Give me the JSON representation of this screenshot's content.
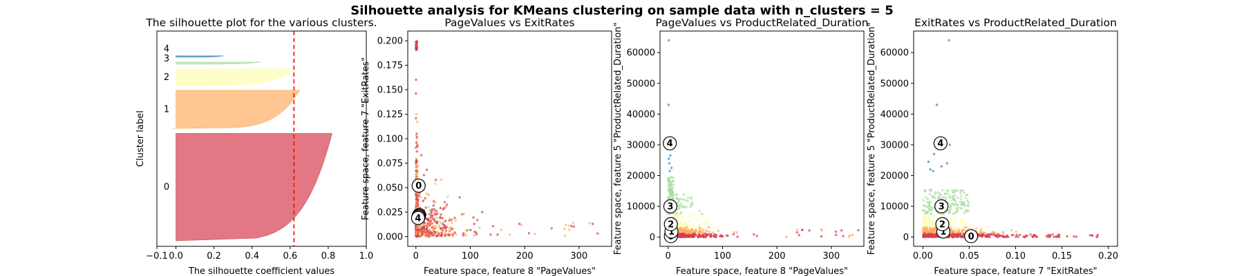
{
  "suptitle": "Silhouette analysis for KMeans clustering on sample data with n_clusters = 5",
  "colors": {
    "cluster_0": "#d53e4f",
    "cluster_1": "#fdae61",
    "cluster_2": "#fefeb0",
    "cluster_3": "#abdda4",
    "cluster_4": "#3288bd",
    "average_line": "#ff0000"
  },
  "chart_data": [
    {
      "type": "area",
      "title": "The silhouette plot for the various clusters.",
      "xlabel": "The silhouette coefficient values",
      "ylabel": "Cluster label",
      "xlim": [
        -0.1,
        1.0
      ],
      "xticks": [
        -0.1,
        0.0,
        0.2,
        0.4,
        0.6,
        0.8,
        1.0
      ],
      "xtick_labels": [
        "−0.1",
        "0.0",
        "0.2",
        "0.4",
        "0.6",
        "0.8",
        "1.0"
      ],
      "yticks": "none",
      "average_silhouette": 0.62,
      "clusters": [
        {
          "label": "0",
          "max": 0.82,
          "min": 0.0,
          "share": 0.59
        },
        {
          "label": "1",
          "max": 0.65,
          "min": -0.02,
          "share": 0.21
        },
        {
          "label": "2",
          "max": 0.62,
          "min": 0.0,
          "share": 0.09
        },
        {
          "label": "3",
          "max": 0.45,
          "min": 0.0,
          "share": 0.012
        },
        {
          "label": "4",
          "max": 0.25,
          "min": 0.0,
          "share": 0.004
        }
      ]
    },
    {
      "type": "scatter",
      "title": "PageValues vs ExitRates",
      "xlabel": "Feature space, feature 8 \"PageValues\"",
      "ylabel": "Feature space, feature 7 \"ExitRates\"",
      "xlim": [
        -15,
        360
      ],
      "ylim": [
        -0.01,
        0.21
      ],
      "xticks": [
        0,
        100,
        200,
        300
      ],
      "xtick_labels": [
        "0",
        "100",
        "200",
        "300"
      ],
      "yticks": [
        0.0,
        0.025,
        0.05,
        0.075,
        0.1,
        0.125,
        0.15,
        0.175,
        0.2
      ],
      "ytick_labels": [
        "0.000",
        "0.025",
        "0.050",
        "0.075",
        "0.100",
        "0.125",
        "0.150",
        "0.175",
        "0.200"
      ],
      "centers": [
        {
          "label": "0",
          "x": 5,
          "y": 0.052
        },
        {
          "label": "1",
          "x": 6,
          "y": 0.022
        },
        {
          "label": "2",
          "x": 5,
          "y": 0.021
        },
        {
          "label": "3",
          "x": 5,
          "y": 0.02
        },
        {
          "label": "4",
          "x": 4,
          "y": 0.019
        }
      ]
    },
    {
      "type": "scatter",
      "title": "PageValues vs ProductRelated_Duration",
      "xlabel": "Feature space, feature 8 \"PageValues\"",
      "ylabel": "Feature space, feature 5 \"ProductRelated_Duration\"",
      "xlim": [
        -15,
        360
      ],
      "ylim": [
        -3000,
        67000
      ],
      "xticks": [
        0,
        100,
        200,
        300
      ],
      "xtick_labels": [
        "0",
        "100",
        "200",
        "300"
      ],
      "yticks": [
        0,
        10000,
        20000,
        30000,
        40000,
        50000,
        60000
      ],
      "ytick_labels": [
        "0",
        "10000",
        "20000",
        "30000",
        "40000",
        "50000",
        "60000"
      ],
      "centers": [
        {
          "label": "0",
          "x": 5,
          "y": 300
        },
        {
          "label": "1",
          "x": 6,
          "y": 1800
        },
        {
          "label": "2",
          "x": 5,
          "y": 4200
        },
        {
          "label": "3",
          "x": 4,
          "y": 10000
        },
        {
          "label": "4",
          "x": 3,
          "y": 30500
        }
      ]
    },
    {
      "type": "scatter",
      "title": "ExitRates vs ProductRelated_Duration",
      "xlabel": "Feature space, feature 7 \"ExitRates\"",
      "ylabel": "Feature space, feature 5 \"ProductRelated_Duration\"",
      "xlim": [
        -0.01,
        0.21
      ],
      "ylim": [
        -3000,
        67000
      ],
      "xticks": [
        0.0,
        0.05,
        0.1,
        0.15,
        0.2
      ],
      "xtick_labels": [
        "0.00",
        "0.05",
        "0.10",
        "0.15",
        "0.20"
      ],
      "yticks": [
        0,
        10000,
        20000,
        30000,
        40000,
        50000,
        60000
      ],
      "ytick_labels": [
        "0",
        "10000",
        "20000",
        "30000",
        "40000",
        "50000",
        "60000"
      ],
      "centers": [
        {
          "label": "0",
          "x": 0.052,
          "y": 300
        },
        {
          "label": "1",
          "x": 0.022,
          "y": 1800
        },
        {
          "label": "2",
          "x": 0.021,
          "y": 4200
        },
        {
          "label": "3",
          "x": 0.02,
          "y": 10000
        },
        {
          "label": "4",
          "x": 0.019,
          "y": 30500
        }
      ]
    }
  ]
}
